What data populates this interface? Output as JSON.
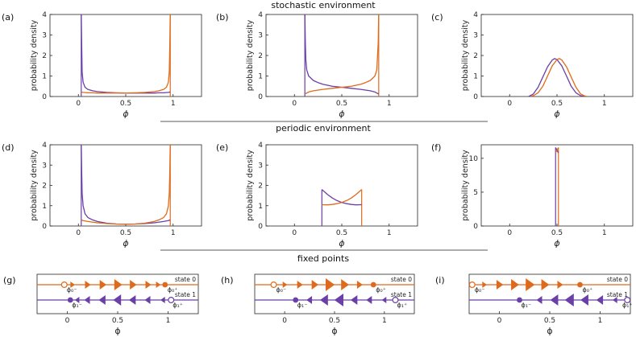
{
  "sections": {
    "stochastic": "stochastic environment",
    "periodic": "periodic environment",
    "fixed": "fixed points"
  },
  "colors": {
    "purple": "#6a3fa6",
    "orange": "#e06a1b",
    "axis": "#262626"
  },
  "axis_labels": {
    "y": "probability density",
    "x": "ϕ",
    "x_fixed": "ϕ"
  },
  "chart_data": [
    {
      "id": "a",
      "label": "(a)",
      "type": "line",
      "xlim": [
        -0.3,
        1.3
      ],
      "ylim": [
        0,
        4
      ],
      "xticks": [
        {
          "v": 0,
          "t": "0"
        },
        {
          "v": 0.5,
          "t": "0.5"
        },
        {
          "v": 1,
          "t": "1"
        }
      ],
      "yticks": [
        {
          "v": 0,
          "t": "0"
        },
        {
          "v": 1,
          "t": "1"
        },
        {
          "v": 2,
          "t": "2"
        },
        {
          "v": 3,
          "t": "3"
        },
        {
          "v": 4,
          "t": "4"
        }
      ],
      "series": [
        {
          "name": "state 1",
          "color": "purple",
          "x": [
            0.03,
            0.035,
            0.04,
            0.05,
            0.07,
            0.1,
            0.15,
            0.2,
            0.3,
            0.4,
            0.5,
            0.6,
            0.7,
            0.8,
            0.85,
            0.9,
            0.95,
            0.97
          ],
          "y": [
            4,
            2.4,
            1.2,
            0.7,
            0.45,
            0.35,
            0.28,
            0.24,
            0.2,
            0.18,
            0.17,
            0.17,
            0.17,
            0.17,
            0.18,
            0.18,
            0.2,
            0.22
          ]
        },
        {
          "name": "state 0",
          "color": "orange",
          "x": [
            0.03,
            0.05,
            0.1,
            0.15,
            0.2,
            0.3,
            0.4,
            0.5,
            0.6,
            0.7,
            0.8,
            0.85,
            0.9,
            0.93,
            0.95,
            0.96,
            0.965,
            0.97
          ],
          "y": [
            0.22,
            0.2,
            0.18,
            0.18,
            0.17,
            0.17,
            0.17,
            0.17,
            0.18,
            0.2,
            0.24,
            0.28,
            0.35,
            0.45,
            0.7,
            1.2,
            2.4,
            4
          ]
        }
      ],
      "vlines": [
        {
          "x": 0.03,
          "y0": 0,
          "y1": 4,
          "color": "purple"
        },
        {
          "x": 0.97,
          "y0": 0,
          "y1": 4,
          "color": "orange"
        }
      ]
    },
    {
      "id": "b",
      "label": "(b)",
      "type": "line",
      "xlim": [
        -0.3,
        1.3
      ],
      "ylim": [
        0,
        4
      ],
      "xticks": [
        {
          "v": 0,
          "t": "0"
        },
        {
          "v": 0.5,
          "t": "0.5"
        },
        {
          "v": 1,
          "t": "1"
        }
      ],
      "yticks": [
        {
          "v": 0,
          "t": "0"
        },
        {
          "v": 1,
          "t": "1"
        },
        {
          "v": 2,
          "t": "2"
        },
        {
          "v": 3,
          "t": "3"
        },
        {
          "v": 4,
          "t": "4"
        }
      ],
      "series": [
        {
          "name": "state 1",
          "color": "purple",
          "x": [
            0.11,
            0.115,
            0.12,
            0.13,
            0.15,
            0.2,
            0.25,
            0.3,
            0.4,
            0.5,
            0.6,
            0.7,
            0.8,
            0.85,
            0.89
          ],
          "y": [
            4,
            2.6,
            1.8,
            1.3,
            1.0,
            0.78,
            0.68,
            0.6,
            0.5,
            0.45,
            0.4,
            0.35,
            0.28,
            0.22,
            0.12
          ]
        },
        {
          "name": "state 0",
          "color": "orange",
          "x": [
            0.11,
            0.15,
            0.2,
            0.3,
            0.4,
            0.5,
            0.6,
            0.7,
            0.75,
            0.8,
            0.85,
            0.87,
            0.875,
            0.885,
            0.89
          ],
          "y": [
            0.12,
            0.22,
            0.28,
            0.35,
            0.4,
            0.45,
            0.5,
            0.6,
            0.68,
            0.78,
            1.0,
            1.3,
            1.8,
            2.6,
            4
          ]
        }
      ],
      "vlines": [
        {
          "x": 0.11,
          "y0": 0,
          "y1": 4,
          "color": "purple"
        },
        {
          "x": 0.89,
          "y0": 0,
          "y1": 4,
          "color": "orange"
        }
      ]
    },
    {
      "id": "c",
      "label": "(c)",
      "type": "line",
      "xlim": [
        -0.3,
        1.3
      ],
      "ylim": [
        0,
        4
      ],
      "xticks": [
        {
          "v": 0,
          "t": "0"
        },
        {
          "v": 0.5,
          "t": "0.5"
        },
        {
          "v": 1,
          "t": "1"
        }
      ],
      "yticks": [
        {
          "v": 0,
          "t": "0"
        },
        {
          "v": 1,
          "t": "1"
        },
        {
          "v": 2,
          "t": "2"
        },
        {
          "v": 3,
          "t": "3"
        },
        {
          "v": 4,
          "t": "4"
        }
      ],
      "series": [
        {
          "name": "state 1",
          "color": "purple",
          "x": [
            0.2,
            0.25,
            0.3,
            0.35,
            0.4,
            0.45,
            0.475,
            0.5,
            0.55,
            0.6,
            0.65,
            0.7,
            0.75,
            0.8
          ],
          "y": [
            0,
            0.12,
            0.45,
            0.95,
            1.45,
            1.78,
            1.85,
            1.8,
            1.5,
            1.0,
            0.5,
            0.18,
            0.04,
            0
          ]
        },
        {
          "name": "state 0",
          "color": "orange",
          "x": [
            0.22,
            0.25,
            0.3,
            0.35,
            0.4,
            0.45,
            0.5,
            0.525,
            0.55,
            0.6,
            0.65,
            0.7,
            0.75,
            0.8,
            0.82
          ],
          "y": [
            0,
            0.04,
            0.18,
            0.5,
            1.0,
            1.5,
            1.8,
            1.85,
            1.78,
            1.45,
            0.95,
            0.45,
            0.12,
            0.01,
            0
          ]
        }
      ],
      "vlines": []
    },
    {
      "id": "d",
      "label": "(d)",
      "type": "line",
      "xlim": [
        -0.3,
        1.3
      ],
      "ylim": [
        0,
        4
      ],
      "xticks": [
        {
          "v": 0,
          "t": "0"
        },
        {
          "v": 0.5,
          "t": "0.5"
        },
        {
          "v": 1,
          "t": "1"
        }
      ],
      "yticks": [
        {
          "v": 0,
          "t": "0"
        },
        {
          "v": 1,
          "t": "1"
        },
        {
          "v": 2,
          "t": "2"
        },
        {
          "v": 3,
          "t": "3"
        },
        {
          "v": 4,
          "t": "4"
        }
      ],
      "series": [
        {
          "name": "state 1",
          "color": "purple",
          "x": [
            0.03,
            0.035,
            0.04,
            0.05,
            0.07,
            0.1,
            0.15,
            0.2,
            0.3,
            0.4,
            0.5,
            0.6,
            0.7,
            0.8,
            0.9,
            0.95,
            0.97
          ],
          "y": [
            4,
            2.6,
            1.6,
            1.0,
            0.6,
            0.42,
            0.3,
            0.22,
            0.14,
            0.1,
            0.09,
            0.1,
            0.12,
            0.16,
            0.22,
            0.27,
            0.3
          ]
        },
        {
          "name": "state 0",
          "color": "orange",
          "x": [
            0.03,
            0.05,
            0.1,
            0.2,
            0.3,
            0.4,
            0.5,
            0.6,
            0.7,
            0.8,
            0.85,
            0.9,
            0.93,
            0.95,
            0.96,
            0.965,
            0.97
          ],
          "y": [
            0.3,
            0.27,
            0.22,
            0.16,
            0.12,
            0.1,
            0.09,
            0.1,
            0.14,
            0.22,
            0.3,
            0.42,
            0.6,
            1.0,
            1.6,
            2.6,
            4
          ]
        }
      ],
      "vlines": [
        {
          "x": 0.03,
          "y0": 0,
          "y1": 4,
          "color": "purple"
        },
        {
          "x": 0.97,
          "y0": 0,
          "y1": 4,
          "color": "orange"
        }
      ]
    },
    {
      "id": "e",
      "label": "(e)",
      "type": "line",
      "xlim": [
        -0.3,
        1.3
      ],
      "ylim": [
        0,
        4
      ],
      "xticks": [
        {
          "v": 0,
          "t": "0"
        },
        {
          "v": 0.5,
          "t": "0.5"
        },
        {
          "v": 1,
          "t": "1"
        }
      ],
      "yticks": [
        {
          "v": 0,
          "t": "0"
        },
        {
          "v": 1,
          "t": "1"
        },
        {
          "v": 2,
          "t": "2"
        },
        {
          "v": 3,
          "t": "3"
        },
        {
          "v": 4,
          "t": "4"
        }
      ],
      "series": [
        {
          "name": "state 1",
          "color": "purple",
          "x": [
            0.29,
            0.35,
            0.4,
            0.45,
            0.5,
            0.55,
            0.6,
            0.65,
            0.71
          ],
          "y": [
            1.8,
            1.55,
            1.38,
            1.25,
            1.16,
            1.1,
            1.06,
            1.04,
            1.05
          ]
        },
        {
          "name": "state 0",
          "color": "orange",
          "x": [
            0.29,
            0.35,
            0.4,
            0.45,
            0.5,
            0.55,
            0.6,
            0.65,
            0.71
          ],
          "y": [
            1.05,
            1.04,
            1.06,
            1.1,
            1.16,
            1.25,
            1.38,
            1.55,
            1.8
          ]
        }
      ],
      "vlines": [
        {
          "x": 0.29,
          "y0": 0,
          "y1": 1.8,
          "color": "purple"
        },
        {
          "x": 0.71,
          "y0": 0,
          "y1": 1.8,
          "color": "orange"
        }
      ]
    },
    {
      "id": "f",
      "label": "(f)",
      "type": "line",
      "xlim": [
        -0.3,
        1.3
      ],
      "ylim": [
        0,
        12
      ],
      "xticks": [
        {
          "v": 0,
          "t": "0"
        },
        {
          "v": 0.5,
          "t": "0.5"
        },
        {
          "v": 1,
          "t": "1"
        }
      ],
      "yticks": [
        {
          "v": 0,
          "t": "0"
        },
        {
          "v": 5,
          "t": "5"
        },
        {
          "v": 10,
          "t": "10"
        }
      ],
      "series": [
        {
          "name": "state 1",
          "color": "purple",
          "x": [
            0.485,
            0.515
          ],
          "y": [
            11.6,
            10.8
          ]
        },
        {
          "name": "state 0",
          "color": "orange",
          "x": [
            0.485,
            0.515
          ],
          "y": [
            10.8,
            11.6
          ]
        }
      ],
      "vlines": [
        {
          "x": 0.485,
          "y0": 0,
          "y1": 11.6,
          "color": "purple"
        },
        {
          "x": 0.515,
          "y0": 0,
          "y1": 11.6,
          "color": "orange"
        }
      ]
    }
  ],
  "fixed_points": [
    {
      "id": "g",
      "label": "(g)",
      "xlim": [
        -0.3,
        1.3
      ],
      "xticks": [
        {
          "v": 0,
          "t": "0"
        },
        {
          "v": 0.5,
          "t": "0.5"
        },
        {
          "v": 1,
          "t": "1"
        }
      ],
      "state0": {
        "label": "state 0",
        "unstable": -0.03,
        "stable": 0.97,
        "unstable_label": "ϕ₀⁻",
        "stable_label": "ϕ₀⁺",
        "arrows": [
          {
            "x": 0.05,
            "s": 4
          },
          {
            "x": 0.2,
            "s": 5
          },
          {
            "x": 0.35,
            "s": 6
          },
          {
            "x": 0.5,
            "s": 7
          },
          {
            "x": 0.65,
            "s": 6
          },
          {
            "x": 0.8,
            "s": 5
          },
          {
            "x": 0.9,
            "s": 4
          }
        ]
      },
      "state1": {
        "label": "state 1",
        "stable": 0.03,
        "unstable": 1.03,
        "stable_label": "ϕ₁⁻",
        "unstable_label": "ϕ₁⁺",
        "arrows": [
          {
            "x": 0.1,
            "s": 4
          },
          {
            "x": 0.2,
            "s": 5
          },
          {
            "x": 0.35,
            "s": 6
          },
          {
            "x": 0.5,
            "s": 7
          },
          {
            "x": 0.65,
            "s": 6
          },
          {
            "x": 0.8,
            "s": 5
          },
          {
            "x": 0.95,
            "s": 4
          }
        ]
      }
    },
    {
      "id": "h",
      "label": "(h)",
      "xlim": [
        -0.3,
        1.3
      ],
      "xticks": [
        {
          "v": 0,
          "t": "0"
        },
        {
          "v": 0.5,
          "t": "0.5"
        },
        {
          "v": 1,
          "t": "1"
        }
      ],
      "state0": {
        "label": "state 0",
        "unstable": -0.11,
        "stable": 0.89,
        "unstable_label": "ϕ₀⁻",
        "stable_label": "ϕ₀⁺",
        "arrows": [
          {
            "x": 0.0,
            "s": 4
          },
          {
            "x": 0.15,
            "s": 5
          },
          {
            "x": 0.3,
            "s": 6
          },
          {
            "x": 0.45,
            "s": 8
          },
          {
            "x": 0.6,
            "s": 7
          },
          {
            "x": 0.75,
            "s": 5
          }
        ]
      },
      "state1": {
        "label": "state 1",
        "stable": 0.11,
        "unstable": 1.11,
        "stable_label": "ϕ₁⁻",
        "unstable_label": "ϕ₁⁺",
        "arrows": [
          {
            "x": 0.25,
            "s": 5
          },
          {
            "x": 0.4,
            "s": 7
          },
          {
            "x": 0.55,
            "s": 8
          },
          {
            "x": 0.7,
            "s": 6
          },
          {
            "x": 0.85,
            "s": 5
          },
          {
            "x": 1.0,
            "s": 4
          }
        ]
      }
    },
    {
      "id": "i",
      "label": "(i)",
      "xlim": [
        -0.3,
        1.3
      ],
      "xticks": [
        {
          "v": 0,
          "t": "0"
        },
        {
          "v": 0.5,
          "t": "0.5"
        },
        {
          "v": 1,
          "t": "1"
        }
      ],
      "state0": {
        "label": "state 0",
        "unstable": -0.27,
        "stable": 0.8,
        "unstable_label": "ϕ₀⁻",
        "stable_label": "ϕ₀⁺",
        "arrows": [
          {
            "x": -0.15,
            "s": 4
          },
          {
            "x": 0.0,
            "s": 6
          },
          {
            "x": 0.15,
            "s": 7
          },
          {
            "x": 0.3,
            "s": 8
          },
          {
            "x": 0.45,
            "s": 7
          },
          {
            "x": 0.6,
            "s": 5
          }
        ]
      },
      "state1": {
        "label": "state 1",
        "stable": 0.2,
        "unstable": 1.27,
        "stable_label": "ϕ₁⁻",
        "unstable_label": "ϕ₁⁺",
        "arrows": [
          {
            "x": 0.4,
            "s": 5
          },
          {
            "x": 0.55,
            "s": 7
          },
          {
            "x": 0.7,
            "s": 8
          },
          {
            "x": 0.85,
            "s": 7
          },
          {
            "x": 1.0,
            "s": 6
          },
          {
            "x": 1.15,
            "s": 4
          }
        ]
      }
    }
  ]
}
